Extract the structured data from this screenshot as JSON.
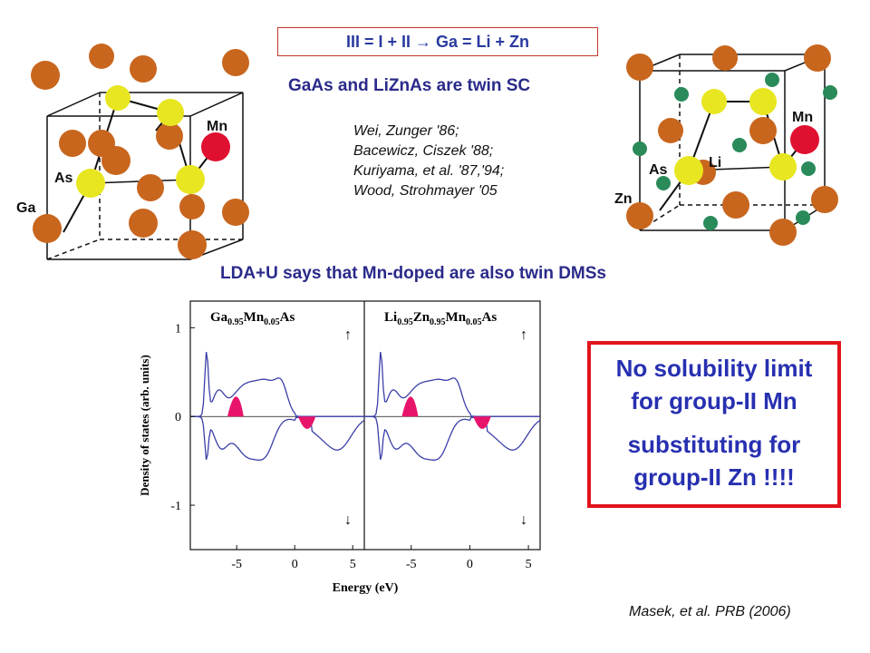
{
  "header": {
    "rule": "III  = I  +  II  → Ga = Li + Zn",
    "subtitle": "GaAs and LiZnAs are twin SC"
  },
  "references": [
    "Wei, Zunger '86;",
    "Bacewicz, Ciszek '88;",
    "Kuriyama, et al. '87,'94;",
    "Wood, Strohmayer '05"
  ],
  "left_crystal": {
    "labels": {
      "mn": "Mn",
      "as": "As",
      "ga": "Ga"
    },
    "colors": {
      "ga": "#c8661e",
      "as": "#e8e620",
      "mn": "#e01030"
    }
  },
  "right_crystal": {
    "labels": {
      "mn": "Mn",
      "as": "As",
      "li": "Li",
      "zn": "Zn"
    },
    "colors": {
      "zn": "#c8661e",
      "as": "#e8e620",
      "mn": "#e01030",
      "li": "#2a8a5a"
    }
  },
  "statement": "LDA+U says that Mn-doped are also twin DMSs",
  "callout": {
    "line1": "No solubility limit",
    "line2": "for group-II Mn",
    "line3": "substituting for",
    "line4": "group-II Zn  !!!!"
  },
  "chart_data": {
    "type": "line",
    "ylabel": "Density of states (arb. units)",
    "xlabel": "Energy (eV)",
    "panels": [
      {
        "title_parts": [
          "Ga",
          "0.95",
          "Mn",
          "0.05",
          "As"
        ],
        "xticks": [
          "-5",
          "0",
          "5"
        ]
      },
      {
        "title_parts": [
          "Li",
          "0.95",
          "Zn",
          "0.95",
          "Mn",
          "0.05",
          "As"
        ],
        "xticks": [
          "-5",
          "0",
          "5"
        ]
      }
    ],
    "yticks": [
      "1",
      "0",
      "-1"
    ],
    "spin_up": "↑",
    "spin_down": "↓",
    "xlim": [
      -9,
      6
    ],
    "ylim": [
      -1.5,
      1.3
    ],
    "line_color": "#3b3fa8",
    "fill_color": "#e8146c"
  },
  "citation": "Masek, et al. PRB (2006)"
}
